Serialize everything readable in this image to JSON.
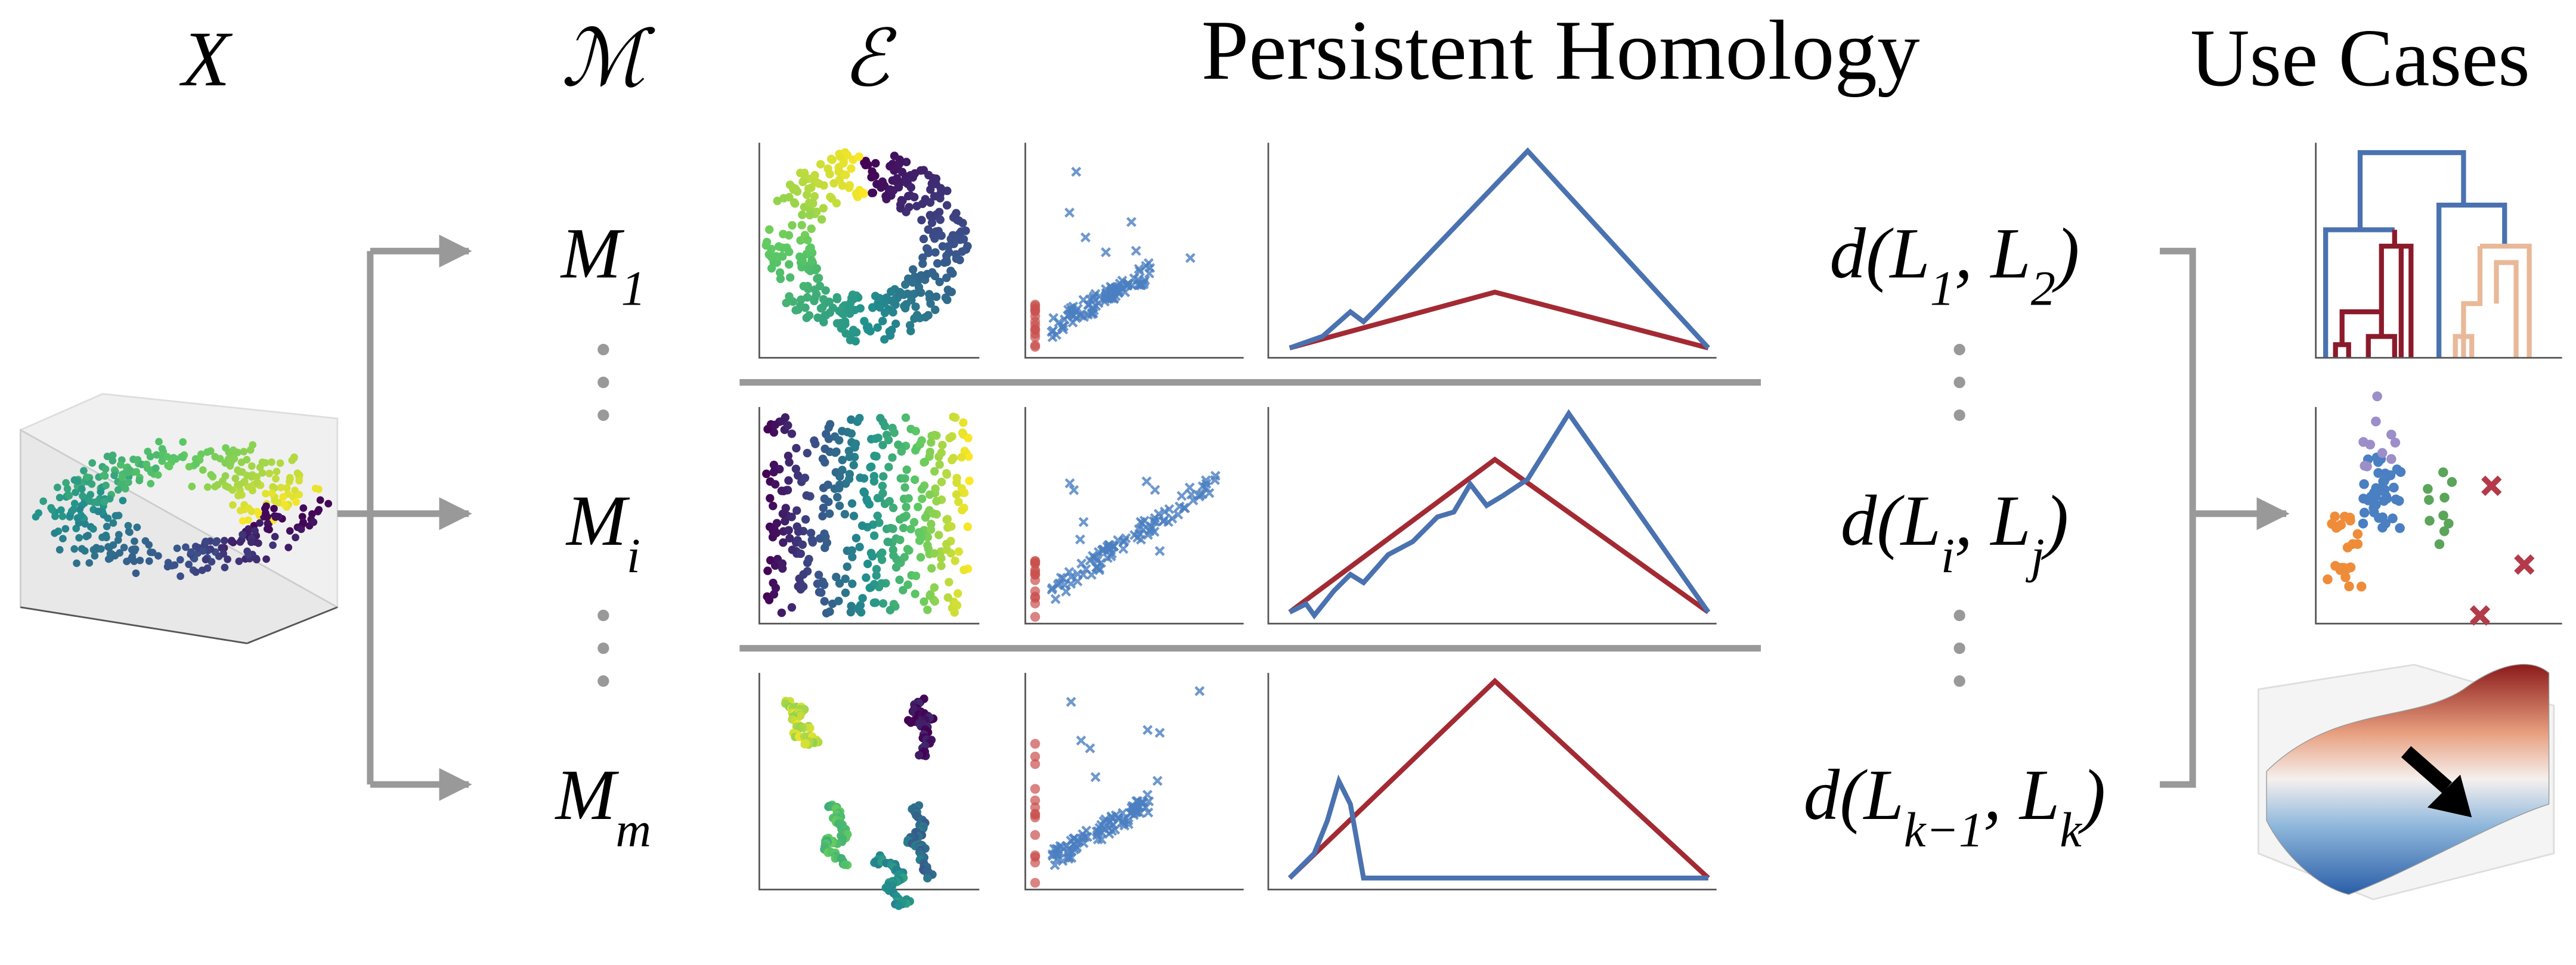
{
  "header": {
    "input": "X",
    "models": "ℳ",
    "embeddings": "ℰ",
    "title": "Persistent Homology",
    "use_cases": "Use Cases"
  },
  "rows": [
    {
      "model": {
        "parts": [
          "M",
          "1"
        ]
      },
      "distance": {
        "parts": [
          "d(L",
          "1",
          ", L",
          "2",
          ")"
        ]
      }
    },
    {
      "model": {
        "parts": [
          "M",
          "i"
        ]
      },
      "distance": {
        "parts": [
          "d(L",
          "i",
          ", L",
          "j",
          ")"
        ]
      }
    },
    {
      "model": {
        "parts": [
          "M",
          "m"
        ]
      },
      "distance": {
        "parts": [
          "d(L",
          "k−1",
          ", L",
          "k",
          ")"
        ]
      }
    }
  ]
}
